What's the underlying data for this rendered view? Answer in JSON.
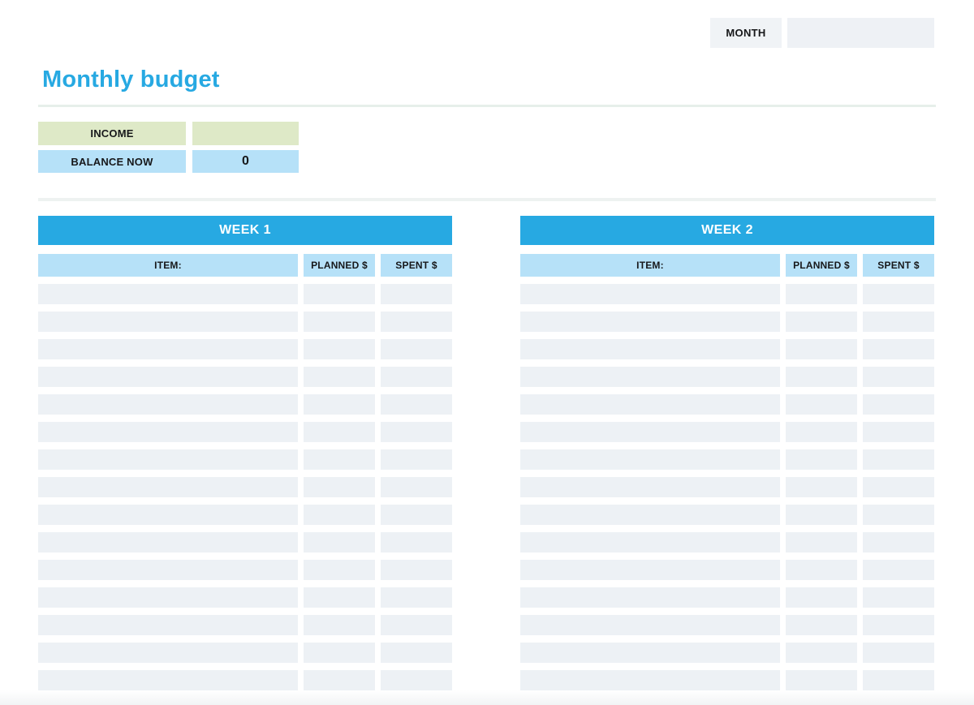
{
  "title": "Monthly budget",
  "header": {
    "month_label": "MONTH",
    "month_value": ""
  },
  "summary": [
    {
      "label": "INCOME",
      "value": ""
    },
    {
      "label": "BALANCE NOW",
      "value": "0"
    }
  ],
  "tables": [
    {
      "title": "WEEK 1",
      "columns": [
        "ITEM:",
        "PLANNED $",
        "SPENT $"
      ],
      "row_count": 15,
      "rows": [
        [
          "",
          "",
          ""
        ],
        [
          "",
          "",
          ""
        ],
        [
          "",
          "",
          ""
        ],
        [
          "",
          "",
          ""
        ],
        [
          "",
          "",
          ""
        ],
        [
          "",
          "",
          ""
        ],
        [
          "",
          "",
          ""
        ],
        [
          "",
          "",
          ""
        ],
        [
          "",
          "",
          ""
        ],
        [
          "",
          "",
          ""
        ],
        [
          "",
          "",
          ""
        ],
        [
          "",
          "",
          ""
        ],
        [
          "",
          "",
          ""
        ],
        [
          "",
          "",
          ""
        ],
        [
          "",
          "",
          ""
        ]
      ]
    },
    {
      "title": "WEEK 2",
      "columns": [
        "ITEM:",
        "PLANNED $",
        "SPENT $"
      ],
      "row_count": 15,
      "rows": [
        [
          "",
          "",
          ""
        ],
        [
          "",
          "",
          ""
        ],
        [
          "",
          "",
          ""
        ],
        [
          "",
          "",
          ""
        ],
        [
          "",
          "",
          ""
        ],
        [
          "",
          "",
          ""
        ],
        [
          "",
          "",
          ""
        ],
        [
          "",
          "",
          ""
        ],
        [
          "",
          "",
          ""
        ],
        [
          "",
          "",
          ""
        ],
        [
          "",
          "",
          ""
        ],
        [
          "",
          "",
          ""
        ],
        [
          "",
          "",
          ""
        ],
        [
          "",
          "",
          ""
        ],
        [
          "",
          "",
          ""
        ]
      ]
    }
  ],
  "colors": {
    "accent": "#27a9e2",
    "light_blue": "#b6e1f8",
    "green": "#dee9c7",
    "row_gray": "#edf1f5",
    "title_blue": "#29abe2"
  }
}
